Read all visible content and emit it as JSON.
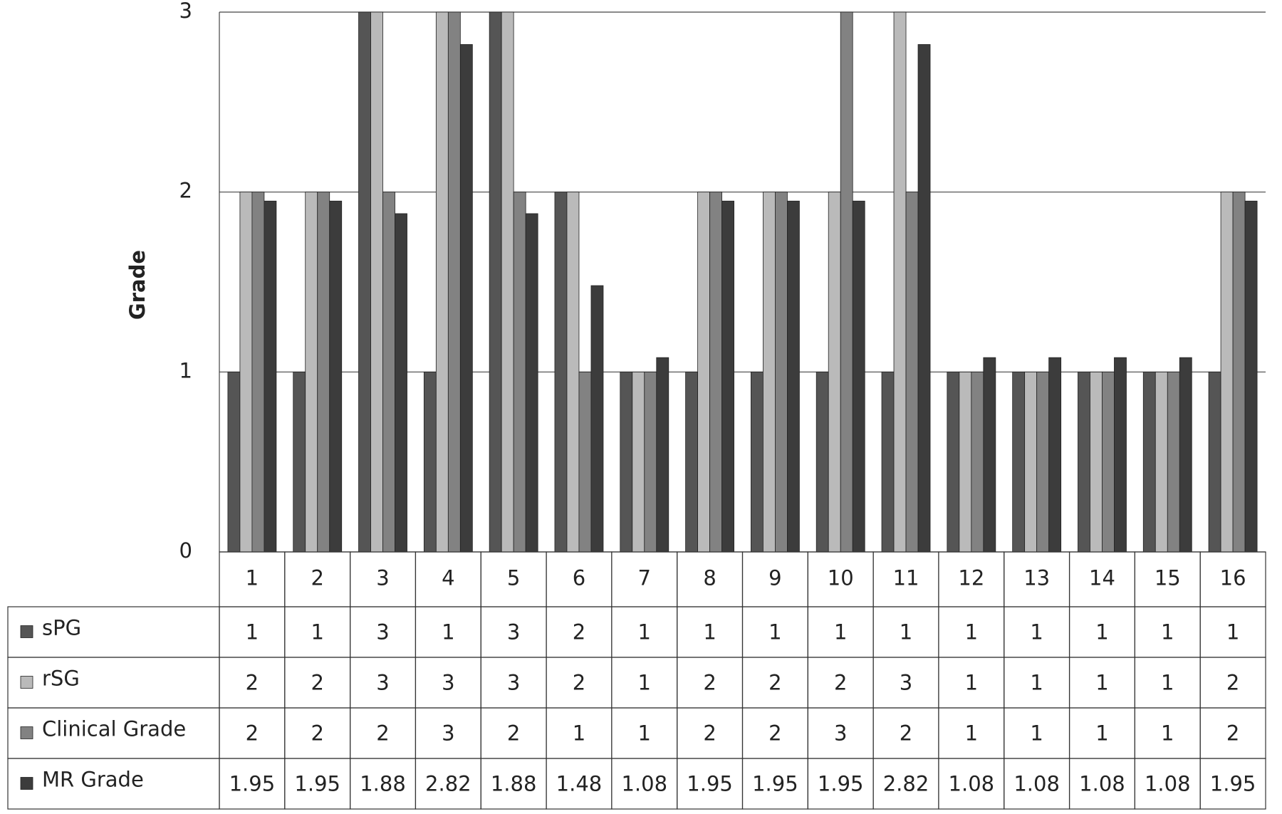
{
  "chart_data": {
    "type": "bar",
    "y_label": "Grade",
    "categories": [
      "1",
      "2",
      "3",
      "4",
      "5",
      "6",
      "7",
      "8",
      "9",
      "10",
      "11",
      "12",
      "13",
      "14",
      "15",
      "16"
    ],
    "series": [
      {
        "name": "sPG",
        "color": "#555555",
        "values": [
          1,
          1,
          3,
          1,
          3,
          2,
          1,
          1,
          1,
          1,
          1,
          1,
          1,
          1,
          1,
          1
        ]
      },
      {
        "name": "rSG",
        "color": "#bababa",
        "values": [
          2,
          2,
          3,
          3,
          3,
          2,
          1,
          2,
          2,
          2,
          3,
          1,
          1,
          1,
          1,
          2
        ]
      },
      {
        "name": "Clinical Grade",
        "color": "#828282",
        "values": [
          2,
          2,
          2,
          3,
          2,
          1,
          1,
          2,
          2,
          3,
          2,
          1,
          1,
          1,
          1,
          2
        ]
      },
      {
        "name": "MR Grade",
        "color": "#3c3c3c",
        "values": [
          1.95,
          1.95,
          1.88,
          2.82,
          1.88,
          1.48,
          1.08,
          1.95,
          1.95,
          1.95,
          2.82,
          1.08,
          1.08,
          1.08,
          1.08,
          1.95
        ]
      }
    ],
    "ylim": [
      0,
      3
    ],
    "yticks": [
      0,
      1,
      2,
      3
    ],
    "grid": true
  }
}
